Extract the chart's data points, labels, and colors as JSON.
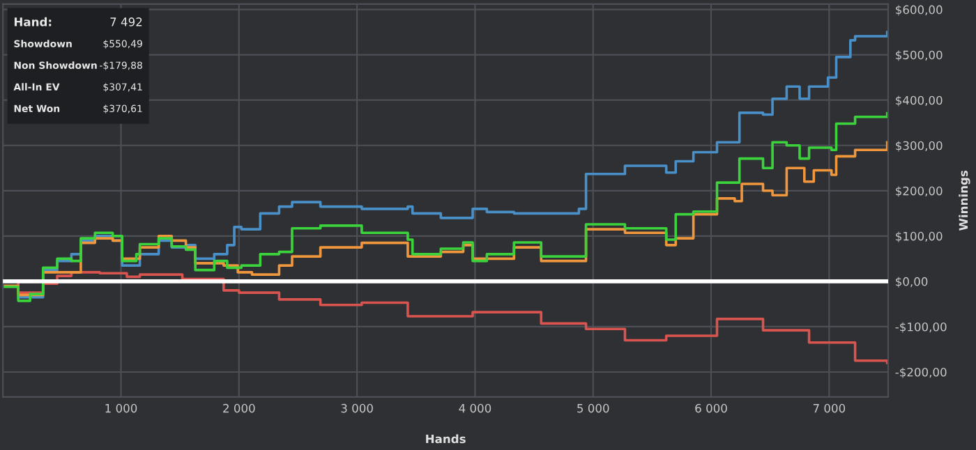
{
  "chart_data": {
    "type": "step",
    "xlabel": "Hands",
    "ylabel": "Winnings",
    "xlim": [
      0,
      7500
    ],
    "ylim": [
      -255,
      612
    ],
    "xticks": [
      {
        "value": 1000,
        "label": "1 000"
      },
      {
        "value": 2000,
        "label": "2 000"
      },
      {
        "value": 3000,
        "label": "3 000"
      },
      {
        "value": 4000,
        "label": "4 000"
      },
      {
        "value": 5000,
        "label": "5 000"
      },
      {
        "value": 6000,
        "label": "6 000"
      },
      {
        "value": 7000,
        "label": "7 000"
      }
    ],
    "yticks": [
      {
        "value": -200,
        "label": "-$200,00"
      },
      {
        "value": -100,
        "label": "-$100,00"
      },
      {
        "value": 0,
        "label": "$0,00"
      },
      {
        "value": 100,
        "label": "$100,00"
      },
      {
        "value": 200,
        "label": "$200,00"
      },
      {
        "value": 300,
        "label": "$300,00"
      },
      {
        "value": 400,
        "label": "$400,00"
      },
      {
        "value": 500,
        "label": "$500,00"
      },
      {
        "value": 600,
        "label": "$600,00"
      }
    ],
    "grid": true,
    "marker": "none",
    "line_style": "solid",
    "ref_lines": [
      {
        "axis": "y",
        "value": 0,
        "color": "#ffffff"
      }
    ],
    "annotations": [
      "Hand:",
      "7 492",
      "Showdown",
      "$550,49",
      "Non Showdown",
      "-$179,88",
      "All-In EV",
      "$307,41",
      "Net Won",
      "$370,61"
    ],
    "series": [
      {
        "color": "#4a90c8",
        "x": [
          130,
          340,
          460,
          580,
          660,
          780,
          930,
          1010,
          1160,
          1320,
          1430,
          1550,
          1630,
          1790,
          1900,
          1960,
          2020,
          2180,
          2340,
          2450,
          2690,
          3040,
          3430,
          3470,
          3710,
          3980,
          4100,
          4330,
          4560,
          4880,
          4940,
          5270,
          5620,
          5700,
          5850,
          6050,
          6240,
          6440,
          6520,
          6640,
          6750,
          6830,
          6990,
          7060,
          7180,
          7220,
          7492
        ],
        "values": [
          -35,
          25,
          45,
          60,
          90,
          100,
          90,
          35,
          60,
          90,
          75,
          80,
          50,
          60,
          80,
          120,
          115,
          150,
          165,
          175,
          165,
          160,
          165,
          150,
          140,
          160,
          153,
          150,
          150,
          160,
          237,
          255,
          240,
          265,
          285,
          307,
          372,
          368,
          403,
          430,
          403,
          430,
          450,
          495,
          532,
          541,
          550
        ]
      },
      {
        "color": "#d9534f",
        "x": [
          0,
          130,
          340,
          460,
          580,
          820,
          1050,
          1160,
          1520,
          1870,
          2000,
          2340,
          2690,
          3040,
          3430,
          3980,
          4330,
          4560,
          4940,
          5270,
          5620,
          6050,
          6440,
          6830,
          7220,
          7492
        ],
        "values": [
          0,
          -25,
          -5,
          12,
          20,
          18,
          10,
          15,
          5,
          -20,
          -25,
          -40,
          -52,
          -47,
          -77,
          -68,
          -68,
          -93,
          -105,
          -130,
          -120,
          -83,
          -108,
          -135,
          -175,
          -180
        ]
      },
      {
        "color": "#f0963c",
        "x": [
          0,
          130,
          340,
          660,
          780,
          930,
          1010,
          1160,
          1320,
          1430,
          1550,
          1630,
          1870,
          1990,
          2110,
          2340,
          2450,
          2690,
          3040,
          3430,
          3710,
          3900,
          3980,
          4100,
          4330,
          4560,
          4880,
          4940,
          5270,
          5620,
          5700,
          5850,
          6050,
          6200,
          6260,
          6440,
          6520,
          6640,
          6790,
          6870,
          7020,
          7060,
          7220,
          7492
        ],
        "values": [
          -10,
          -30,
          20,
          85,
          95,
          90,
          50,
          75,
          100,
          90,
          75,
          40,
          35,
          20,
          15,
          35,
          55,
          75,
          85,
          55,
          65,
          80,
          50,
          50,
          75,
          45,
          45,
          115,
          107,
          80,
          95,
          148,
          183,
          177,
          215,
          200,
          190,
          250,
          220,
          245,
          235,
          276,
          290,
          307
        ]
      },
      {
        "color": "#3cd23c",
        "x": [
          0,
          130,
          230,
          340,
          460,
          580,
          660,
          780,
          930,
          1010,
          1130,
          1160,
          1320,
          1430,
          1550,
          1630,
          1790,
          1900,
          2020,
          2180,
          2340,
          2450,
          2690,
          3040,
          3430,
          3470,
          3710,
          3900,
          3980,
          4100,
          4330,
          4560,
          4880,
          4940,
          5270,
          5620,
          5700,
          5850,
          6050,
          6240,
          6440,
          6520,
          6640,
          6750,
          6830,
          7020,
          7060,
          7220,
          7492
        ],
        "values": [
          -12,
          -43,
          -28,
          30,
          50,
          45,
          95,
          107,
          100,
          45,
          60,
          82,
          95,
          77,
          70,
          25,
          45,
          30,
          35,
          60,
          65,
          117,
          123,
          107,
          92,
          60,
          72,
          86,
          45,
          60,
          86,
          55,
          55,
          126,
          117,
          92,
          148,
          154,
          218,
          271,
          250,
          307,
          300,
          271,
          295,
          290,
          348,
          363,
          371
        ]
      }
    ]
  }
}
